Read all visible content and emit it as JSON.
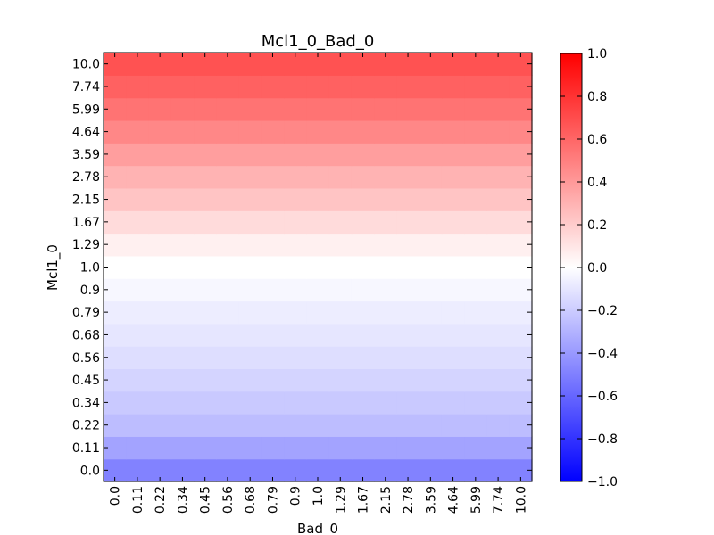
{
  "chart_data": {
    "type": "heatmap",
    "title": "Mcl1_0_Bad_0",
    "xlabel": "Bad_0",
    "ylabel": "Mcl1_0",
    "x_categories": [
      "0.0",
      "0.11",
      "0.22",
      "0.34",
      "0.45",
      "0.56",
      "0.68",
      "0.79",
      "0.9",
      "1.0",
      "1.29",
      "1.67",
      "2.15",
      "2.78",
      "3.59",
      "4.64",
      "5.99",
      "7.74",
      "10.0"
    ],
    "y_categories": [
      "0.0",
      "0.11",
      "0.22",
      "0.34",
      "0.45",
      "0.56",
      "0.68",
      "0.79",
      "0.9",
      "1.0",
      "1.29",
      "1.67",
      "2.15",
      "2.78",
      "3.59",
      "4.64",
      "5.99",
      "7.74",
      "10.0"
    ],
    "row_values": [
      -0.49,
      -0.36,
      -0.26,
      -0.21,
      -0.17,
      -0.13,
      -0.1,
      -0.07,
      -0.03,
      0.0,
      0.06,
      0.14,
      0.23,
      0.3,
      0.38,
      0.47,
      0.55,
      0.62,
      0.68
    ],
    "colormap": {
      "min_color": "#0000ff",
      "mid_color": "#ffffff",
      "max_color": "#ff0000"
    },
    "colorbar": {
      "vmin": -1.0,
      "vmax": 1.0,
      "ticks": [
        "−1.0",
        "−0.8",
        "−0.6",
        "−0.4",
        "−0.2",
        "0.0",
        "0.2",
        "0.4",
        "0.6",
        "0.8",
        "1.0"
      ]
    }
  }
}
